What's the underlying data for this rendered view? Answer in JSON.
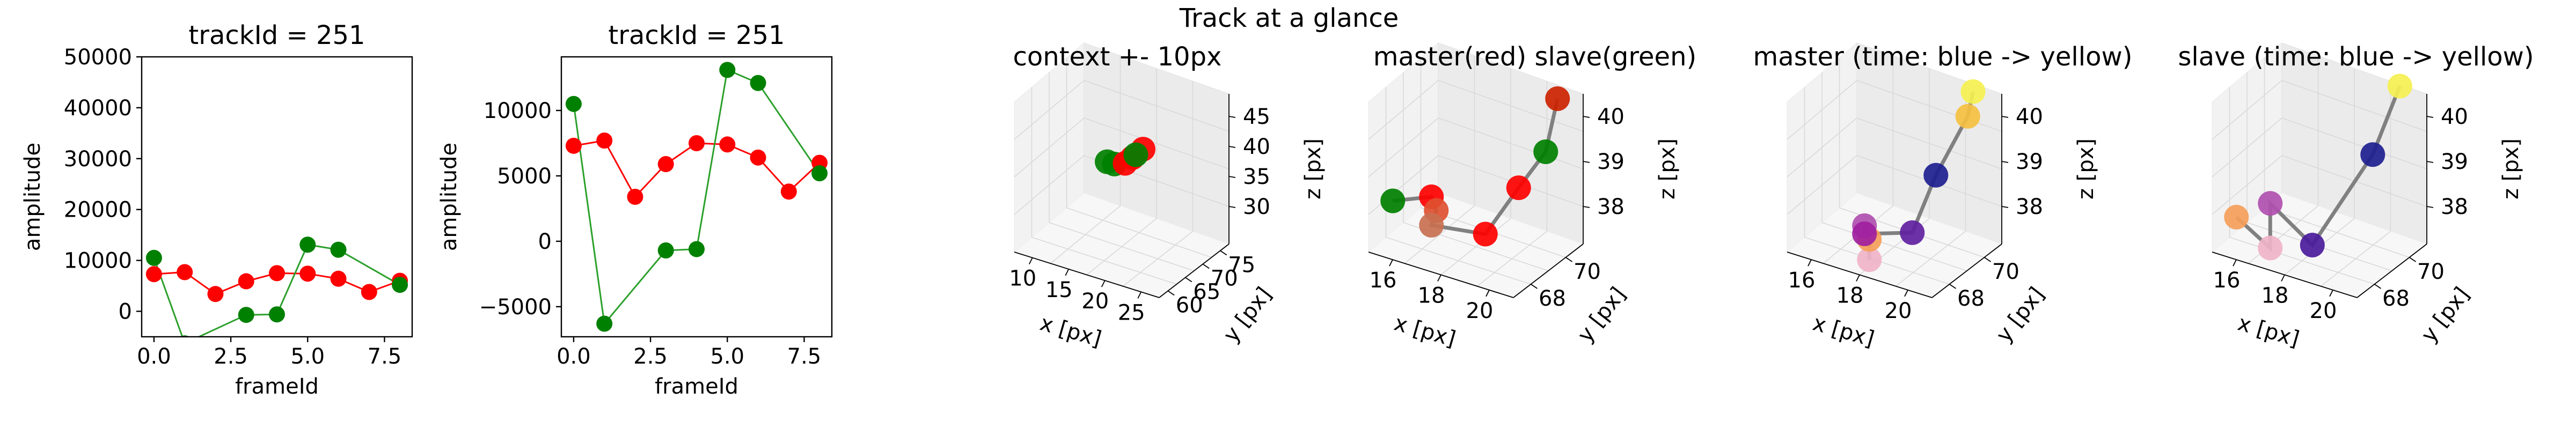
{
  "suptitle": "Track at a glance",
  "chart_data": [
    {
      "type": "scatter",
      "title": "trackId = 251",
      "xlabel": "frameId",
      "ylabel": "amplitude",
      "xlim": [
        -0.4,
        8.4
      ],
      "ylim": [
        -5000,
        50000
      ],
      "xticks": [
        0.0,
        2.5,
        5.0,
        7.5
      ],
      "xtick_labels": [
        "0.0",
        "2.5",
        "5.0",
        "7.5"
      ],
      "yticks": [
        0,
        10000,
        20000,
        30000,
        40000,
        50000
      ],
      "ytick_labels": [
        "0",
        "10000",
        "20000",
        "30000",
        "40000",
        "50000"
      ],
      "grid": false,
      "series": [
        {
          "color": "#ff0000",
          "line_color": "#ff0000",
          "x": [
            0,
            1,
            2,
            3,
            4,
            5,
            6,
            7,
            8
          ],
          "y": [
            7300,
            7700,
            3400,
            5900,
            7500,
            7400,
            6400,
            3800,
            6000
          ]
        },
        {
          "color": "#008000",
          "line_color": "#2ca02c",
          "x": [
            0,
            1,
            3,
            4,
            5,
            6,
            8
          ],
          "y": [
            10500,
            -6300,
            -700,
            -600,
            13100,
            12100,
            5200
          ]
        }
      ]
    },
    {
      "type": "scatter",
      "title": "trackId = 251",
      "xlabel": "frameId",
      "ylabel": "amplitude",
      "xlim": [
        -0.4,
        8.4
      ],
      "ylim": [
        -7300,
        14100
      ],
      "xticks": [
        0.0,
        2.5,
        5.0,
        7.5
      ],
      "xtick_labels": [
        "0.0",
        "2.5",
        "5.0",
        "7.5"
      ],
      "yticks": [
        -5000,
        0,
        5000,
        10000
      ],
      "ytick_labels": [
        "−5000",
        "0",
        "5000",
        "10000"
      ],
      "grid": false,
      "series": [
        {
          "color": "#ff0000",
          "line_color": "#ff0000",
          "x": [
            0,
            1,
            2,
            3,
            4,
            5,
            6,
            7,
            8
          ],
          "y": [
            7300,
            7700,
            3400,
            5900,
            7500,
            7400,
            6400,
            3800,
            6000
          ]
        },
        {
          "color": "#008000",
          "line_color": "#2ca02c",
          "x": [
            0,
            1,
            3,
            4,
            5,
            6,
            8
          ],
          "y": [
            10500,
            -6300,
            -700,
            -600,
            13100,
            12100,
            5200
          ]
        }
      ]
    },
    {
      "type": "scatter3d",
      "title": "context +- 10px",
      "xlabel": "x [px]",
      "ylabel": "y [px]",
      "zlabel": "z [px]",
      "xticks": [
        "10",
        "15",
        "20",
        "25"
      ],
      "yticks": [
        "60",
        "65",
        "70",
        "75"
      ],
      "zticks": [
        "30",
        "35",
        "40",
        "45"
      ],
      "points": [
        {
          "x": 16,
          "y": 68,
          "z": 38,
          "color": "#008000"
        },
        {
          "x": 17,
          "y": 68,
          "z": 38,
          "color": "#008000"
        },
        {
          "x": 18,
          "y": 69,
          "z": 38,
          "color": "#ff0000"
        },
        {
          "x": 19,
          "y": 69,
          "z": 39,
          "color": "#ff0000"
        },
        {
          "x": 20,
          "y": 70,
          "z": 40,
          "color": "#ff0000"
        },
        {
          "x": 19,
          "y": 70,
          "z": 39,
          "color": "#008000"
        }
      ]
    },
    {
      "type": "scatter3d",
      "title": "master(red) slave(green)",
      "xlabel": "x [px]",
      "ylabel": "y [px]",
      "zlabel": "z [px]",
      "xticks": [
        "16",
        "18",
        "20"
      ],
      "yticks": [
        "68",
        "70"
      ],
      "zticks": [
        "38",
        "39",
        "40"
      ],
      "points": [
        {
          "x": 16,
          "y": 68,
          "z": 38.4,
          "color": "#008000"
        },
        {
          "x": 17.6,
          "y": 68,
          "z": 38.8,
          "color": "#ff0000"
        },
        {
          "x": 17.8,
          "y": 68,
          "z": 38.5,
          "color": "#e05030"
        },
        {
          "x": 17.6,
          "y": 68,
          "z": 38.1,
          "color": "#c87050"
        },
        {
          "x": 19.4,
          "y": 68.6,
          "z": 38.0,
          "color": "#ff0000"
        },
        {
          "x": 20.2,
          "y": 69.4,
          "z": 39.0,
          "color": "#ff0000"
        },
        {
          "x": 20.6,
          "y": 70.4,
          "z": 39.6,
          "color": "#008000"
        },
        {
          "x": 20.8,
          "y": 70.8,
          "z": 40.8,
          "color": "#cc2200"
        }
      ]
    },
    {
      "type": "scatter3d",
      "title": "master (time: blue -> yellow)",
      "xlabel": "x [px]",
      "ylabel": "y [px]",
      "zlabel": "z [px]",
      "xticks": [
        "16",
        "18",
        "20"
      ],
      "yticks": [
        "68",
        "70"
      ],
      "zticks": [
        "38",
        "39",
        "40"
      ],
      "points": [
        {
          "x": 18.4,
          "y": 68.0,
          "z": 37.4,
          "color": "#f0b3c8"
        },
        {
          "x": 18.4,
          "y": 68.0,
          "z": 37.9,
          "color": "#f5a05a"
        },
        {
          "x": 18.2,
          "y": 68.0,
          "z": 38.2,
          "color": "#b04fb0"
        },
        {
          "x": 18.2,
          "y": 68.0,
          "z": 38.0,
          "color": "#a020a0"
        },
        {
          "x": 19.6,
          "y": 68.8,
          "z": 38.0,
          "color": "#6020a0"
        },
        {
          "x": 20.0,
          "y": 69.6,
          "z": 39.2,
          "color": "#1e1e90"
        },
        {
          "x": 20.6,
          "y": 70.6,
          "z": 40.4,
          "color": "#f5c040"
        },
        {
          "x": 20.6,
          "y": 70.9,
          "z": 40.9,
          "color": "#f5f050"
        }
      ]
    },
    {
      "type": "scatter3d",
      "title": "slave (time: blue -> yellow)",
      "xlabel": "x [px]",
      "ylabel": "y [px]",
      "zlabel": "z [px]",
      "xticks": [
        "16",
        "18",
        "20"
      ],
      "yticks": [
        "68",
        "70"
      ],
      "zticks": [
        "38",
        "39",
        "40"
      ],
      "points": [
        {
          "x": 16.0,
          "y": 68.0,
          "z": 38.0,
          "color": "#f5a05a"
        },
        {
          "x": 17.4,
          "y": 68.0,
          "z": 37.5,
          "color": "#f0b3c8"
        },
        {
          "x": 17.4,
          "y": 68.0,
          "z": 38.6,
          "color": "#b04fb0"
        },
        {
          "x": 19.0,
          "y": 68.2,
          "z": 37.8,
          "color": "#4a1a9a"
        },
        {
          "x": 20.2,
          "y": 70.0,
          "z": 39.6,
          "color": "#1e1e90"
        },
        {
          "x": 20.6,
          "y": 71.0,
          "z": 41.0,
          "color": "#f5f050"
        }
      ]
    }
  ]
}
